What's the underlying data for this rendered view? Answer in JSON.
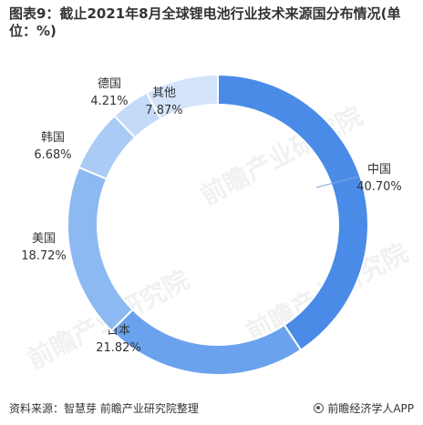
{
  "title": "图表9：截止2021年8月全球锂电池行业技术来源国分布情况(单位：%)",
  "footer": {
    "source": "资料来源：智慧芽 前瞻产业研究院整理",
    "brand": "前瞻经济学人APP"
  },
  "watermark": "前瞻产业研究院",
  "colors": {
    "中国": "#4a8be8",
    "日本": "#6aa2ee",
    "美国": "#8cb9f2",
    "韩国": "#a9cbf5",
    "德国": "#c3dbf8",
    "其他": "#d3e4fa",
    "leader": "#7aa6e0"
  },
  "chart_data": {
    "type": "pie",
    "donut": true,
    "categories": [
      "中国",
      "日本",
      "美国",
      "韩国",
      "德国",
      "其他"
    ],
    "values": [
      40.7,
      21.82,
      18.72,
      6.68,
      4.21,
      7.87
    ],
    "value_labels": [
      "40.70%",
      "21.82%",
      "18.72%",
      "6.68%",
      "4.21%",
      "7.87%"
    ]
  }
}
